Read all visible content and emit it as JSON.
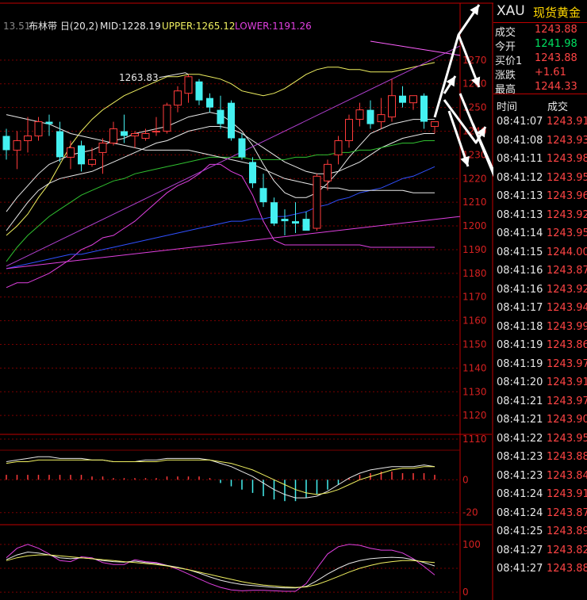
{
  "indicator_header": {
    "prefix": "13.51",
    "name": "布林带 日(20,2)",
    "mid": "MID:1228.19",
    "upper": "UPPER:1265.12",
    "lower": "LOWER:1191.26"
  },
  "annotations": {
    "high_label": "1263.83"
  },
  "quote": {
    "symbol": "XAU",
    "name": "现货黄金",
    "rows": [
      {
        "label": "成交",
        "value": "1243.88",
        "color": "#ff4444"
      },
      {
        "label": "今开",
        "value": "1241.98",
        "color": "#00e060"
      },
      {
        "label": "买价1",
        "value": "1243.88",
        "color": "#ff4444"
      },
      {
        "label": "涨跌",
        "value": "+1.61",
        "color": "#ff4444"
      },
      {
        "label": "最高",
        "value": "1244.33",
        "color": "#ff4444"
      }
    ]
  },
  "ticks": {
    "header_time": "时间",
    "header_price": "成交",
    "rows": [
      {
        "time": "08:41:07",
        "price": "1243.91"
      },
      {
        "time": "08:41:08",
        "price": "1243.93"
      },
      {
        "time": "08:41:11",
        "price": "1243.98"
      },
      {
        "time": "08:41:12",
        "price": "1243.95"
      },
      {
        "time": "08:41:13",
        "price": "1243.96"
      },
      {
        "time": "08:41:13",
        "price": "1243.92"
      },
      {
        "time": "08:41:14",
        "price": "1243.95"
      },
      {
        "time": "08:41:15",
        "price": "1244.00"
      },
      {
        "time": "08:41:16",
        "price": "1243.87"
      },
      {
        "time": "08:41:16",
        "price": "1243.92"
      },
      {
        "time": "08:41:17",
        "price": "1243.94"
      },
      {
        "time": "08:41:18",
        "price": "1243.99"
      },
      {
        "time": "08:41:19",
        "price": "1243.86"
      },
      {
        "time": "08:41:19",
        "price": "1243.97"
      },
      {
        "time": "08:41:20",
        "price": "1243.91"
      },
      {
        "time": "08:41:21",
        "price": "1243.97"
      },
      {
        "time": "08:41:21",
        "price": "1243.90"
      },
      {
        "time": "08:41:22",
        "price": "1243.95"
      },
      {
        "time": "08:41:23",
        "price": "1243.88"
      },
      {
        "time": "08:41:23",
        "price": "1243.84"
      },
      {
        "time": "08:41:24",
        "price": "1243.91"
      },
      {
        "time": "08:41:24",
        "price": "1243.87"
      },
      {
        "time": "08:41:25",
        "price": "1243.89"
      },
      {
        "time": "08:41:27",
        "price": "1243.82"
      },
      {
        "time": "08:41:27",
        "price": "1243.88"
      }
    ],
    "price_color": "#ff4444"
  },
  "colors": {
    "up": "#ff3b3b",
    "down": "#44f0f0",
    "grid": "#7a0000",
    "axis_red": "#d42020",
    "white": "#e8e8e8",
    "yellow": "#f0f060",
    "magenta": "#e040e0",
    "green": "#30c030",
    "blue": "#3050ff",
    "pink": "#ff60ff",
    "purple": "#b040d0"
  },
  "chart_data": {
    "type": "candlestick",
    "price_axis": {
      "ticks": [
        1270,
        1260,
        1250,
        1240,
        1230,
        1220,
        1210,
        1200,
        1190,
        1180,
        1170,
        1160,
        1150,
        1140,
        1130,
        1120,
        1110
      ],
      "range": [
        1108,
        1282
      ]
    },
    "candles": [
      {
        "o": 1238,
        "h": 1241,
        "l": 1228,
        "c": 1232
      },
      {
        "o": 1232,
        "h": 1240,
        "l": 1224,
        "c": 1236
      },
      {
        "o": 1236,
        "h": 1246,
        "l": 1231,
        "c": 1238
      },
      {
        "o": 1238,
        "h": 1246,
        "l": 1236,
        "c": 1244
      },
      {
        "o": 1244,
        "h": 1247,
        "l": 1238,
        "c": 1243
      },
      {
        "o": 1240,
        "h": 1244,
        "l": 1227,
        "c": 1229
      },
      {
        "o": 1229,
        "h": 1236,
        "l": 1224,
        "c": 1233
      },
      {
        "o": 1234,
        "h": 1236,
        "l": 1223,
        "c": 1226
      },
      {
        "o": 1226,
        "h": 1233,
        "l": 1225,
        "c": 1228
      },
      {
        "o": 1231,
        "h": 1237,
        "l": 1222,
        "c": 1235
      },
      {
        "o": 1235,
        "h": 1244,
        "l": 1234,
        "c": 1241
      },
      {
        "o": 1240,
        "h": 1247,
        "l": 1235,
        "c": 1238
      },
      {
        "o": 1238,
        "h": 1240,
        "l": 1233,
        "c": 1239
      },
      {
        "o": 1237,
        "h": 1241,
        "l": 1236,
        "c": 1239
      },
      {
        "o": 1240,
        "h": 1246,
        "l": 1238,
        "c": 1240
      },
      {
        "o": 1240,
        "h": 1252,
        "l": 1239,
        "c": 1251
      },
      {
        "o": 1251,
        "h": 1259,
        "l": 1248,
        "c": 1257
      },
      {
        "o": 1256,
        "h": 1264,
        "l": 1252,
        "c": 1263
      },
      {
        "o": 1261,
        "h": 1262,
        "l": 1251,
        "c": 1253
      },
      {
        "o": 1254,
        "h": 1256,
        "l": 1248,
        "c": 1250
      },
      {
        "o": 1249,
        "h": 1255,
        "l": 1241,
        "c": 1243
      },
      {
        "o": 1252,
        "h": 1253,
        "l": 1236,
        "c": 1237
      },
      {
        "o": 1237,
        "h": 1239,
        "l": 1228,
        "c": 1229
      },
      {
        "o": 1227,
        "h": 1229,
        "l": 1216,
        "c": 1218
      },
      {
        "o": 1216,
        "h": 1222,
        "l": 1208,
        "c": 1210
      },
      {
        "o": 1210,
        "h": 1212,
        "l": 1200,
        "c": 1201
      },
      {
        "o": 1203,
        "h": 1207,
        "l": 1196,
        "c": 1202
      },
      {
        "o": 1202,
        "h": 1210,
        "l": 1197,
        "c": 1201
      },
      {
        "o": 1203,
        "h": 1206,
        "l": 1198,
        "c": 1198
      },
      {
        "o": 1199,
        "h": 1222,
        "l": 1198,
        "c": 1221
      },
      {
        "o": 1219,
        "h": 1228,
        "l": 1215,
        "c": 1226
      },
      {
        "o": 1230,
        "h": 1238,
        "l": 1226,
        "c": 1236
      },
      {
        "o": 1236,
        "h": 1247,
        "l": 1233,
        "c": 1245
      },
      {
        "o": 1245,
        "h": 1252,
        "l": 1242,
        "c": 1249
      },
      {
        "o": 1249,
        "h": 1253,
        "l": 1241,
        "c": 1243
      },
      {
        "o": 1244,
        "h": 1254,
        "l": 1241,
        "c": 1247
      },
      {
        "o": 1246,
        "h": 1262,
        "l": 1244,
        "c": 1255
      },
      {
        "o": 1255,
        "h": 1259,
        "l": 1250,
        "c": 1252
      },
      {
        "o": 1252,
        "h": 1255,
        "l": 1249,
        "c": 1255
      },
      {
        "o": 1255,
        "h": 1256,
        "l": 1241,
        "c": 1244
      },
      {
        "o": 1242,
        "h": 1244,
        "l": 1239,
        "c": 1244
      }
    ],
    "overlays": [
      {
        "color_key": "yellow",
        "values": [
          1196,
          1200,
          1205,
          1212,
          1218,
          1226,
          1234,
          1240,
          1245,
          1249,
          1252,
          1255,
          1257,
          1259,
          1261,
          1263,
          1263,
          1264,
          1264,
          1263,
          1262,
          1260,
          1257,
          1256,
          1255,
          1256,
          1258,
          1261,
          1264,
          1266,
          1267,
          1267,
          1266,
          1266,
          1265,
          1265,
          1265,
          1266,
          1267,
          1268,
          1269
        ]
      },
      {
        "color_key": "magenta",
        "values": [
          1174,
          1176,
          1176,
          1178,
          1180,
          1183,
          1186,
          1190,
          1192,
          1195,
          1196,
          1199,
          1202,
          1206,
          1210,
          1214,
          1217,
          1219,
          1222,
          1226,
          1226,
          1223,
          1221,
          1213,
          1202,
          1194,
          1192,
          1192,
          1192,
          1192,
          1192,
          1192,
          1192,
          1192,
          1191,
          1191,
          1191,
          1191,
          1191,
          1191,
          1191
        ]
      },
      {
        "color_key": "white",
        "values": [
          1206,
          1212,
          1217,
          1222,
          1226,
          1228,
          1230,
          1231,
          1232,
          1234,
          1236,
          1237,
          1239,
          1240,
          1241,
          1242,
          1244,
          1246,
          1247,
          1248,
          1247,
          1244,
          1240,
          1234,
          1226,
          1219,
          1214,
          1212,
          1212,
          1214,
          1218,
          1223,
          1229,
          1234,
          1239,
          1241,
          1243,
          1244,
          1245,
          1245,
          1245
        ]
      },
      {
        "color_key": "white",
        "values": [
          1198,
          1204,
          1210,
          1215,
          1218,
          1220,
          1221,
          1222,
          1223,
          1225,
          1227,
          1229,
          1231,
          1233,
          1235,
          1236,
          1238,
          1240,
          1241,
          1242,
          1242,
          1241,
          1239,
          1236,
          1233,
          1230,
          1227,
          1225,
          1223,
          1222,
          1222,
          1223,
          1225,
          1227,
          1230,
          1233,
          1235,
          1237,
          1238,
          1239,
          1239
        ]
      },
      {
        "color_key": "green",
        "values": [
          1185,
          1191,
          1196,
          1200,
          1204,
          1207,
          1210,
          1213,
          1215,
          1217,
          1219,
          1220,
          1222,
          1223,
          1224,
          1225,
          1226,
          1227,
          1228,
          1229,
          1229,
          1229,
          1229,
          1228,
          1228,
          1228,
          1228,
          1229,
          1229,
          1230,
          1230,
          1231,
          1231,
          1232,
          1232,
          1233,
          1234,
          1235,
          1235,
          1236,
          1236
        ]
      },
      {
        "color_key": "blue",
        "values": [
          1182,
          1183,
          1184,
          1185,
          1186,
          1187,
          1188,
          1188,
          1189,
          1190,
          1191,
          1192,
          1193,
          1194,
          1195,
          1196,
          1197,
          1198,
          1199,
          1200,
          1201,
          1202,
          1202,
          1203,
          1203,
          1204,
          1204,
          1205,
          1206,
          1208,
          1209,
          1211,
          1212,
          1214,
          1215,
          1216,
          1218,
          1220,
          1221,
          1223,
          1225
        ]
      },
      {
        "color_key": "white",
        "values": [
          1247,
          1246,
          1245,
          1244,
          1243,
          1241,
          1239,
          1238,
          1237,
          1236,
          1235,
          1234,
          1233,
          1232,
          1232,
          1232,
          1232,
          1232,
          1231,
          1230,
          1229,
          1228,
          1227,
          1226,
          1224,
          1222,
          1220,
          1219,
          1218,
          1217,
          1216,
          1216,
          1215,
          1215,
          1215,
          1215,
          1215,
          1215,
          1214,
          1214,
          1214
        ]
      }
    ],
    "trendlines": [
      {
        "color_key": "magenta",
        "from": [
          0,
          1182
        ],
        "to": [
          44,
          1204
        ]
      },
      {
        "color_key": "purple",
        "from": [
          0,
          1183
        ],
        "to": [
          44,
          1276
        ]
      },
      {
        "color_key": "pink",
        "from": [
          34,
          1278
        ],
        "to": [
          44,
          1272
        ]
      }
    ],
    "macd": {
      "axis": [
        {
          "value": 0,
          "label": "0"
        },
        {
          "value": -20,
          "label": "-20"
        }
      ],
      "range": [
        -24,
        18
      ],
      "dif": [
        11,
        12,
        13,
        14,
        14,
        13,
        13,
        13,
        12,
        12,
        11,
        11,
        11,
        12,
        12,
        13,
        13,
        13,
        13,
        12,
        10,
        8,
        5,
        2,
        -2,
        -6,
        -9,
        -11,
        -11,
        -10,
        -7,
        -3,
        1,
        4,
        6,
        7,
        8,
        8,
        8,
        9,
        8
      ],
      "dea": [
        10,
        11,
        11,
        12,
        12,
        12,
        12,
        12,
        12,
        12,
        11,
        11,
        11,
        11,
        11,
        12,
        12,
        12,
        12,
        12,
        11,
        10,
        8,
        6,
        3,
        0,
        -3,
        -6,
        -8,
        -9,
        -8,
        -6,
        -3,
        0,
        2,
        4,
        6,
        7,
        7,
        8,
        8
      ],
      "hist": [
        3,
        3,
        3,
        3,
        3,
        3,
        3,
        3,
        2,
        2,
        1,
        1,
        1,
        1,
        1,
        2,
        2,
        2,
        2,
        1,
        -2,
        -4,
        -6,
        -8,
        -10,
        -12,
        -13,
        -13,
        -11,
        -9,
        -6,
        -3,
        1,
        3,
        4,
        5,
        5,
        4,
        4,
        4,
        3
      ]
    },
    "kdj": {
      "axis": [
        {
          "value": 100,
          "label": "100"
        },
        {
          "value": 0,
          "label": "0"
        }
      ],
      "range": [
        -8,
        108
      ],
      "k": [
        68,
        78,
        84,
        82,
        78,
        72,
        70,
        72,
        70,
        66,
        64,
        63,
        65,
        62,
        60,
        56,
        52,
        47,
        40,
        32,
        25,
        20,
        16,
        14,
        12,
        10,
        9,
        9,
        12,
        24,
        38,
        50,
        60,
        66,
        70,
        72,
        73,
        72,
        68,
        62,
        55
      ],
      "d": [
        66,
        72,
        76,
        78,
        78,
        76,
        74,
        72,
        70,
        68,
        66,
        64,
        62,
        60,
        58,
        55,
        51,
        47,
        42,
        37,
        32,
        27,
        22,
        18,
        15,
        13,
        11,
        10,
        11,
        16,
        24,
        33,
        42,
        50,
        56,
        61,
        64,
        66,
        66,
        64,
        62
      ],
      "j": [
        72,
        92,
        100,
        92,
        80,
        66,
        64,
        74,
        72,
        62,
        58,
        58,
        68,
        64,
        62,
        56,
        48,
        38,
        28,
        18,
        10,
        5,
        3,
        4,
        4,
        3,
        2,
        2,
        18,
        50,
        80,
        95,
        100,
        98,
        92,
        88,
        88,
        82,
        70,
        54,
        36
      ]
    }
  }
}
